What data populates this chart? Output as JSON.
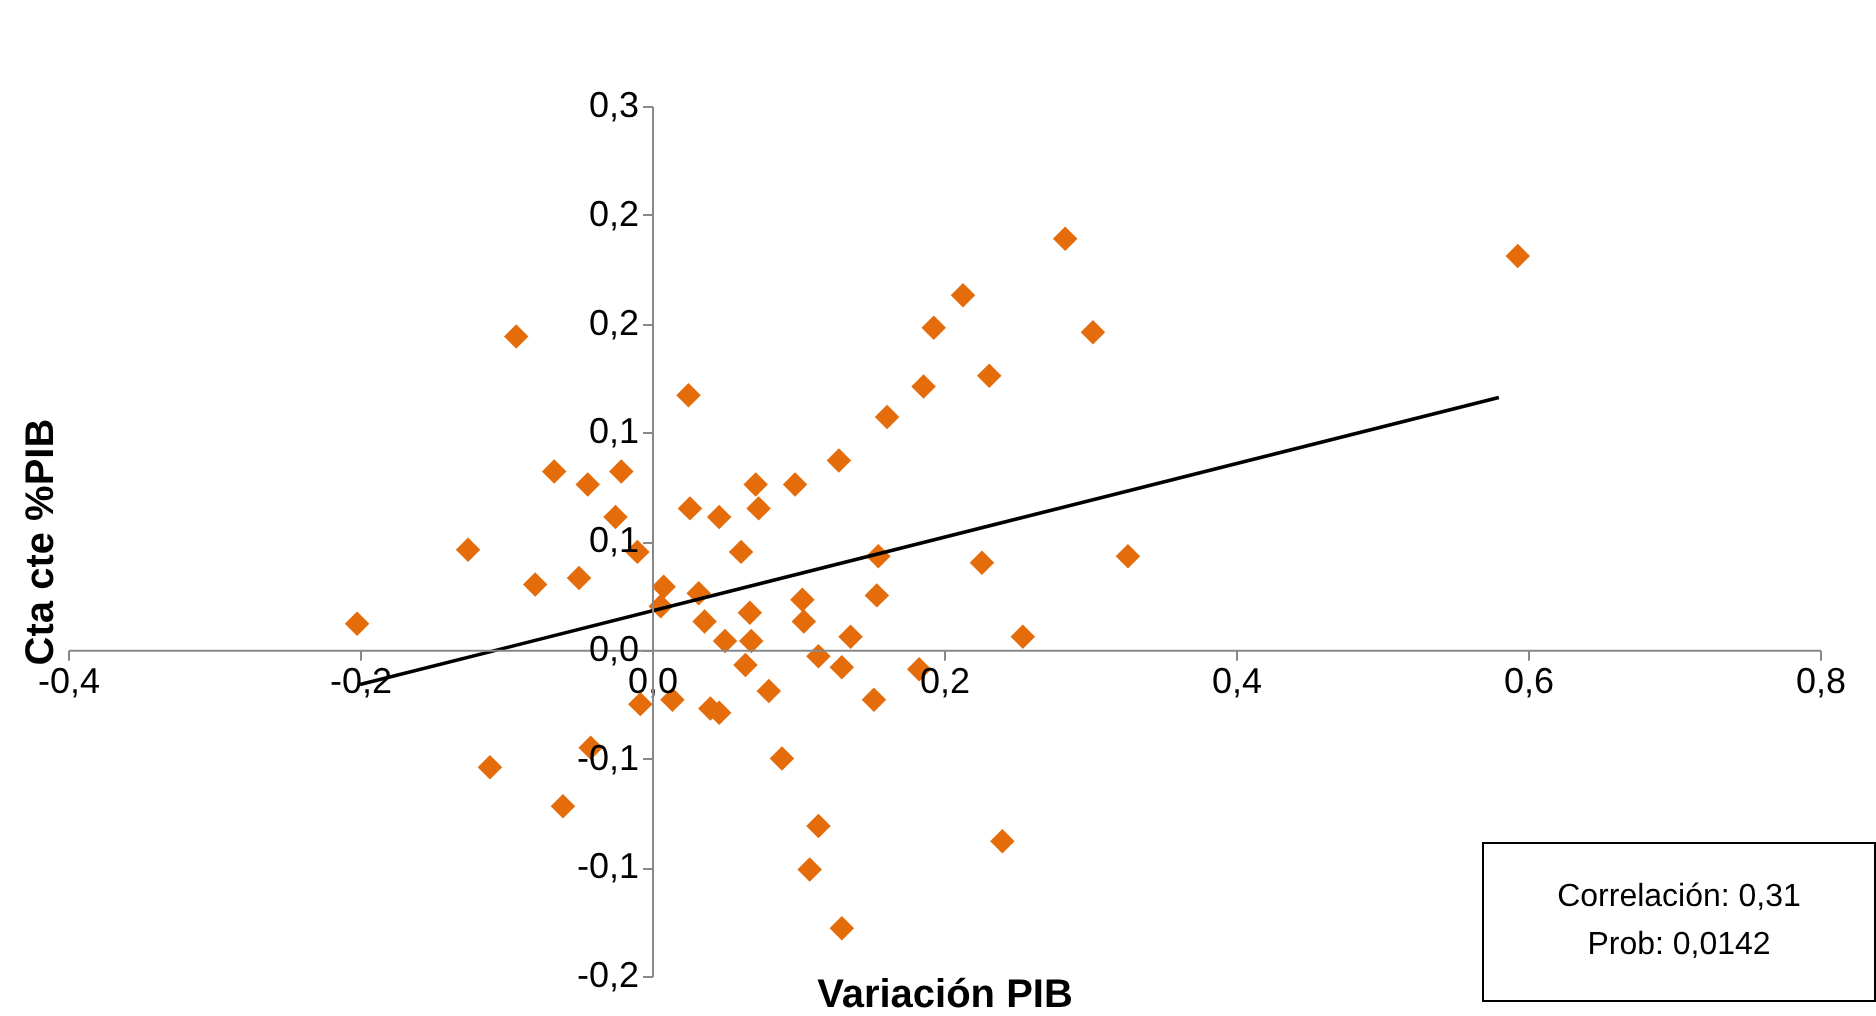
{
  "chart_data": {
    "type": "scatter",
    "xlabel": "Variación PIB",
    "ylabel": "Cta cte %PIB",
    "xlim": [
      -0.4,
      0.8
    ],
    "xticks": [
      {
        "value": -0.4,
        "label": "-0,4"
      },
      {
        "value": -0.2,
        "label": "-0,2"
      },
      {
        "value": 0,
        "label": "0,0"
      },
      {
        "value": 0.2,
        "label": "0,2"
      },
      {
        "value": 0.4,
        "label": "0,4"
      },
      {
        "value": 0.6,
        "label": "0,6"
      },
      {
        "value": 0.8,
        "label": "0,8"
      }
    ],
    "ylim": [
      -0.15,
      0.25
    ],
    "yticks": [
      {
        "value": -0.15,
        "label": "-0,2"
      },
      {
        "value": -0.1,
        "label": "-0,1"
      },
      {
        "value": -0.05,
        "label": "-0,1"
      },
      {
        "value": 0,
        "label": "0,0"
      },
      {
        "value": 0.05,
        "label": "0,1"
      },
      {
        "value": 0.1,
        "label": "0,1"
      },
      {
        "value": 0.15,
        "label": "0,2"
      },
      {
        "value": 0.2,
        "label": "0,2"
      },
      {
        "value": 0.25,
        "label": "0,3"
      }
    ],
    "annotations": [
      "Correlación: 0,31",
      "Prob: 0,0142"
    ],
    "series": [
      {
        "marker": "diamond",
        "color": "#e46c0a",
        "x": [
          -0.202,
          -0.126,
          -0.111,
          -0.093,
          -0.08,
          -0.067,
          -0.061,
          -0.05,
          -0.044,
          -0.042,
          -0.025,
          -0.021,
          -0.01,
          -0.008,
          0.006,
          0.008,
          0.014,
          0.025,
          0.026,
          0.032,
          0.036,
          0.04,
          0.046,
          0.046,
          0.05,
          0.061,
          0.064,
          0.067,
          0.068,
          0.071,
          0.073,
          0.08,
          0.089,
          0.098,
          0.103,
          0.104,
          0.108,
          0.114,
          0.114,
          0.128,
          0.13,
          0.13,
          0.136,
          0.152,
          0.154,
          0.155,
          0.161,
          0.183,
          0.186,
          0.193,
          0.213,
          0.226,
          0.231,
          0.24,
          0.254,
          0.283,
          0.302,
          0.326,
          0.593
        ],
        "values": [
          0.012,
          0.046,
          -0.054,
          0.144,
          0.03,
          0.082,
          -0.072,
          0.033,
          0.076,
          -0.045,
          0.061,
          0.082,
          0.045,
          -0.025,
          0.02,
          0.029,
          -0.023,
          0.117,
          0.065,
          0.026,
          0.013,
          -0.027,
          -0.029,
          0.061,
          0.004,
          0.045,
          -0.007,
          0.017,
          0.004,
          0.076,
          0.065,
          -0.019,
          -0.05,
          0.076,
          0.023,
          0.013,
          -0.101,
          -0.081,
          -0.003,
          0.087,
          -0.008,
          -0.128,
          0.006,
          -0.023,
          0.025,
          0.043,
          0.107,
          -0.009,
          0.121,
          0.148,
          0.163,
          0.04,
          0.126,
          -0.088,
          0.006,
          0.189,
          0.146,
          0.043,
          0.181
        ]
      },
      {
        "type": "line",
        "color": "#000000",
        "x": [
          -0.2,
          0.58
        ],
        "values": [
          -0.016,
          0.116
        ]
      }
    ]
  }
}
